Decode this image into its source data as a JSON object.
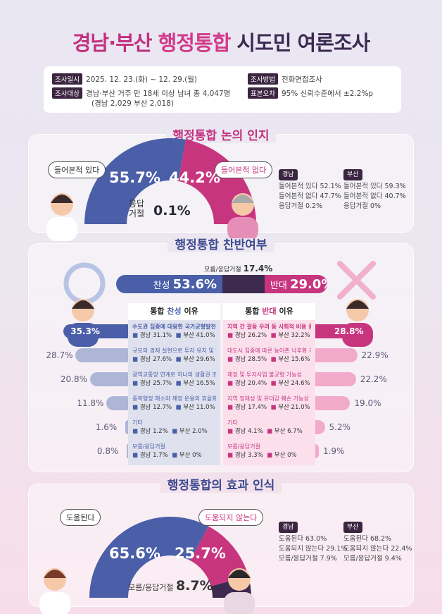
{
  "title": {
    "part1": "경남·부산",
    "part2": "행정통합",
    "part3": "시도민 여론조사"
  },
  "info": {
    "date_label": "조사일시",
    "date": "2025. 12. 23.(화) ~ 12. 29.(월)",
    "target_label": "조사대상",
    "target": "경남·부산 거주 만 18세 이상 남녀 총 4,047명",
    "target_sub": "(경남 2,029 부산 2,018)",
    "method_label": "조사방법",
    "method": "전화면접조사",
    "error_label": "표본오차",
    "error": "95% 신뢰수준에서 ±2.2%p"
  },
  "colors": {
    "blue": "#4a5fa8",
    "pink": "#c8357f",
    "dark": "#3d2a4f"
  },
  "chart_data": [
    {
      "type": "pie",
      "subtype": "semi-donut",
      "title": "행정통합 논의 인지",
      "slices": [
        {
          "name": "들어본적 있다",
          "value": 55.7,
          "label": "55.7%",
          "color": "#4a5fa8"
        },
        {
          "name": "응답거절",
          "value": 0.1,
          "label": "0.1%",
          "color": "#3d2a4f"
        },
        {
          "name": "들어본적 없다",
          "value": 44.2,
          "label": "44.2%",
          "color": "#c8357f"
        }
      ],
      "refuse_label": "응답",
      "refuse_label2": "거절",
      "legend": {
        "gyeongnam": {
          "label": "경남",
          "lines": [
            "들어본적 있다 52.1%",
            "들어본적 없다 47.7%",
            "응답거절 0.2%"
          ]
        },
        "busan": {
          "label": "부산",
          "lines": [
            "들어본적 있다 59.3%",
            "들어본적 없다 40.7%",
            "응답거절 0%"
          ]
        }
      }
    },
    {
      "type": "bar",
      "subtype": "stacked-horizontal",
      "title": "행정통합 찬반여부",
      "series": [
        {
          "name": "찬성",
          "value": 53.6,
          "label": "53.6%",
          "color": "#4a5fa8"
        },
        {
          "name": "모름/응답거절",
          "value": 17.4,
          "label": "17.4%",
          "color": "#3d2a4f"
        },
        {
          "name": "반대",
          "value": 29.0,
          "label": "29.0%",
          "color": "#c8357f"
        }
      ]
    },
    {
      "type": "bar",
      "subtype": "butterfly",
      "title_pro": "통합 찬성 이유",
      "title_con": "통합 반대 이유",
      "pro": [
        {
          "name": "수도권 집중에 대응한 국가균형발전",
          "value": 35.3,
          "gn": "경남 31.1%",
          "bs": "부산 41.0%"
        },
        {
          "name": "규모의 경제 실현으로 투자 유치 및 일자리 확대",
          "value": 28.7,
          "gn": "경남 27.6%",
          "bs": "부산 29.6%"
        },
        {
          "name": "광역교통망 연계로 하나의 생활권 조성",
          "value": 20.8,
          "gn": "경남 25.7%",
          "bs": "부산 16.5%"
        },
        {
          "name": "중복행정 해소와 재정 운용의 효율화",
          "value": 11.8,
          "gn": "경남 12.7%",
          "bs": "부산 11.0%"
        },
        {
          "name": "기타",
          "value": 1.6,
          "gn": "경남 1.2%",
          "bs": "부산 2.0%"
        },
        {
          "name": "모름/응답거절",
          "value": 0.8,
          "gn": "경남 1.7%",
          "bs": "부산 0%"
        }
      ],
      "con": [
        {
          "name": "지역 간 갈등 우려 등 사회적 비용 증가",
          "value": 28.8,
          "gn": "경남 26.2%",
          "bs": "부산 32.2%"
        },
        {
          "name": "대도시 집중에 따른 농어촌 낙후화 가속",
          "value": 22.9,
          "gn": "경남 28.5%",
          "bs": "부산 15.6%"
        },
        {
          "name": "재정 및 투자사업 불균형 가능성",
          "value": 22.2,
          "gn": "경남 20.4%",
          "bs": "부산 24.6%"
        },
        {
          "name": "지역 정체성 및 유대감 훼손 가능성",
          "value": 19.0,
          "gn": "경남 17.4%",
          "bs": "부산 21.0%"
        },
        {
          "name": "기타",
          "value": 5.2,
          "gn": "경남 4.1%",
          "bs": "부산 6.7%"
        },
        {
          "name": "모름/응답거절",
          "value": 1.9,
          "gn": "경남 3.3%",
          "bs": "부산 0%"
        }
      ]
    },
    {
      "type": "pie",
      "subtype": "semi-donut",
      "title": "행정통합의 효과 인식",
      "slices": [
        {
          "name": "도움된다",
          "value": 65.6,
          "label": "65.6%",
          "color": "#4a5fa8"
        },
        {
          "name": "도움되지 않는다",
          "value": 25.7,
          "label": "25.7%",
          "color": "#c8357f"
        },
        {
          "name": "모름/응답거절",
          "value": 8.7,
          "label": "8.7%",
          "color": "#3d2a4f"
        }
      ],
      "legend": {
        "gyeongnam": {
          "label": "경남",
          "lines": [
            "도움된다 63.0%",
            "도움되지 않는다 29.1%",
            "모름/응답거절 7.9%"
          ]
        },
        "busan": {
          "label": "부산",
          "lines": [
            "도움된다 68.2%",
            "도움되지 않는다 22.4%",
            "모름/응답거절 9.4%"
          ]
        }
      }
    }
  ]
}
